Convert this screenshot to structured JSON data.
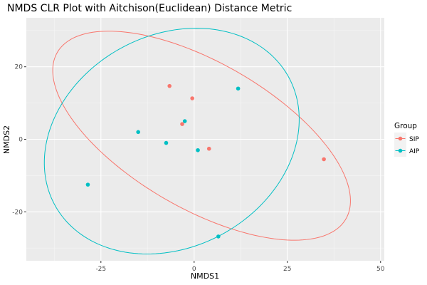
{
  "chart_data": {
    "type": "scatter",
    "title": "NMDS CLR Plot with Aitchison(Euclidean) Distance Metric",
    "xlabel": "NMDS1",
    "ylabel": "NMDS2",
    "xlim": [
      -45,
      51
    ],
    "ylim": [
      -33.5,
      33.5
    ],
    "x_ticks": [
      -25,
      0,
      25,
      50
    ],
    "y_ticks": [
      -20,
      0,
      20
    ],
    "grid": true,
    "legend": {
      "title": "Group",
      "placement": "right",
      "entries": [
        "SIP",
        "AIP"
      ]
    },
    "series": [
      {
        "name": "SIP",
        "color": "#F8766D",
        "points": [
          {
            "x": -6.6,
            "y": 14.7
          },
          {
            "x": -0.5,
            "y": 11.3
          },
          {
            "x": -3.2,
            "y": 4.2
          },
          {
            "x": 4.0,
            "y": -2.6
          },
          {
            "x": 34.8,
            "y": -5.5
          }
        ],
        "ellipse": {
          "center": [
            2,
            1
          ],
          "semi_axes": [
            45,
            20
          ],
          "angle_deg": -31
        }
      },
      {
        "name": "AIP",
        "color": "#00BFC4",
        "points": [
          {
            "x": -28.5,
            "y": -12.5
          },
          {
            "x": -15.0,
            "y": 2.0
          },
          {
            "x": -7.5,
            "y": -1.0
          },
          {
            "x": -2.5,
            "y": 5.0
          },
          {
            "x": 1.0,
            "y": -3.0
          },
          {
            "x": 11.8,
            "y": 14.0
          },
          {
            "x": 6.5,
            "y": -26.8
          }
        ],
        "ellipse": {
          "center": [
            -6,
            -0.5
          ],
          "semi_axes": [
            36,
            29
          ],
          "angle_deg": 32
        }
      }
    ]
  }
}
